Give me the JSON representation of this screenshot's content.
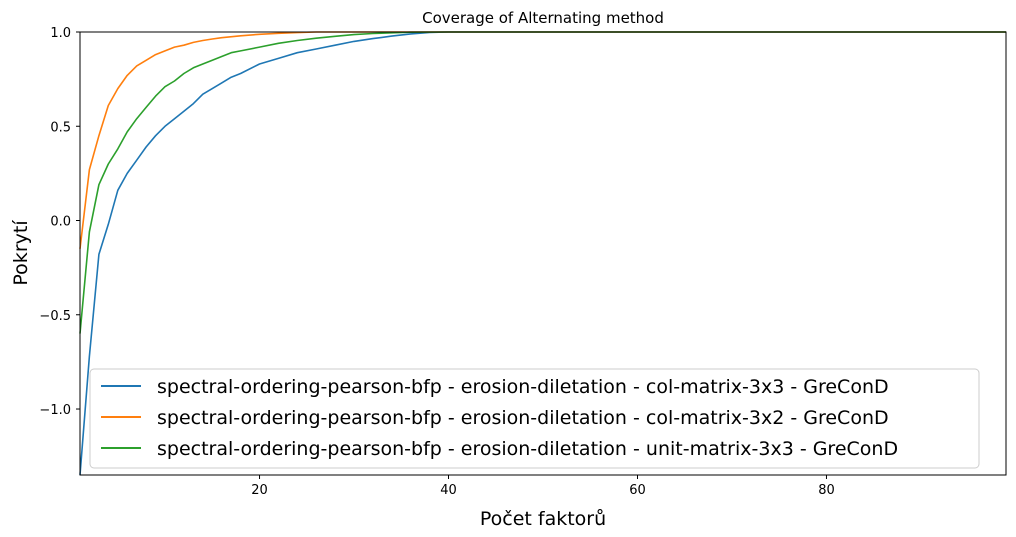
{
  "chart_data": {
    "type": "line",
    "title": "Coverage of Alternating method",
    "xlabel": "Počet faktorů",
    "ylabel": "Pokrytí",
    "xlim": [
      1,
      99
    ],
    "ylim": [
      -1.35,
      1.0
    ],
    "xticks": [
      20,
      40,
      60,
      80
    ],
    "xtick_labels": [
      "20",
      "40",
      "60",
      "80"
    ],
    "yticks": [
      1.0,
      0.5,
      0.0,
      -0.5,
      -1.0
    ],
    "ytick_labels": [
      "1.0",
      "0.5",
      "0.0",
      "−0.5",
      "−1.0"
    ],
    "grid": false,
    "legend_position": "lower-center",
    "series": [
      {
        "name": "spectral-ordering-pearson-bfp - erosion-diletation - col-matrix-3x3 - GreConD",
        "color": "#1f77b4",
        "x": [
          1,
          2,
          3,
          4,
          5,
          6,
          7,
          8,
          9,
          10,
          11,
          12,
          13,
          14,
          15,
          16,
          17,
          18,
          20,
          22,
          24,
          26,
          28,
          30,
          32,
          34,
          36,
          38,
          40,
          45,
          50,
          60,
          70,
          80,
          90,
          99
        ],
        "y": [
          -1.35,
          -0.72,
          -0.18,
          -0.02,
          0.16,
          0.25,
          0.32,
          0.39,
          0.45,
          0.5,
          0.54,
          0.58,
          0.62,
          0.67,
          0.7,
          0.73,
          0.76,
          0.78,
          0.83,
          0.86,
          0.89,
          0.91,
          0.93,
          0.95,
          0.965,
          0.978,
          0.99,
          0.998,
          1.0,
          1.0,
          1.0,
          1.0,
          1.0,
          1.0,
          1.0,
          1.0
        ]
      },
      {
        "name": "spectral-ordering-pearson-bfp - erosion-diletation - col-matrix-3x2 - GreConD",
        "color": "#ff7f0e",
        "x": [
          1,
          2,
          3,
          4,
          5,
          6,
          7,
          8,
          9,
          10,
          11,
          12,
          13,
          14,
          15,
          16,
          18,
          20,
          22,
          24,
          26,
          28,
          30,
          40,
          50,
          60,
          70,
          80,
          90,
          99
        ],
        "y": [
          -0.15,
          0.27,
          0.45,
          0.61,
          0.7,
          0.77,
          0.82,
          0.85,
          0.88,
          0.9,
          0.92,
          0.93,
          0.945,
          0.955,
          0.963,
          0.97,
          0.98,
          0.988,
          0.993,
          0.997,
          1.0,
          1.0,
          1.0,
          1.0,
          1.0,
          1.0,
          1.0,
          1.0,
          1.0,
          1.0
        ]
      },
      {
        "name": "spectral-ordering-pearson-bfp - erosion-diletation - unit-matrix-3x3 - GreConD",
        "color": "#2ca02c",
        "x": [
          1,
          2,
          3,
          4,
          5,
          6,
          7,
          8,
          9,
          10,
          11,
          12,
          13,
          14,
          15,
          16,
          17,
          18,
          20,
          22,
          24,
          26,
          28,
          30,
          32,
          34,
          36,
          40,
          50,
          60,
          70,
          80,
          90,
          99
        ],
        "y": [
          -0.6,
          -0.06,
          0.19,
          0.3,
          0.38,
          0.47,
          0.54,
          0.6,
          0.66,
          0.71,
          0.74,
          0.78,
          0.81,
          0.83,
          0.85,
          0.87,
          0.89,
          0.9,
          0.92,
          0.94,
          0.955,
          0.967,
          0.977,
          0.986,
          0.992,
          0.996,
          0.999,
          1.0,
          1.0,
          1.0,
          1.0,
          1.0,
          1.0,
          1.0
        ]
      }
    ]
  }
}
